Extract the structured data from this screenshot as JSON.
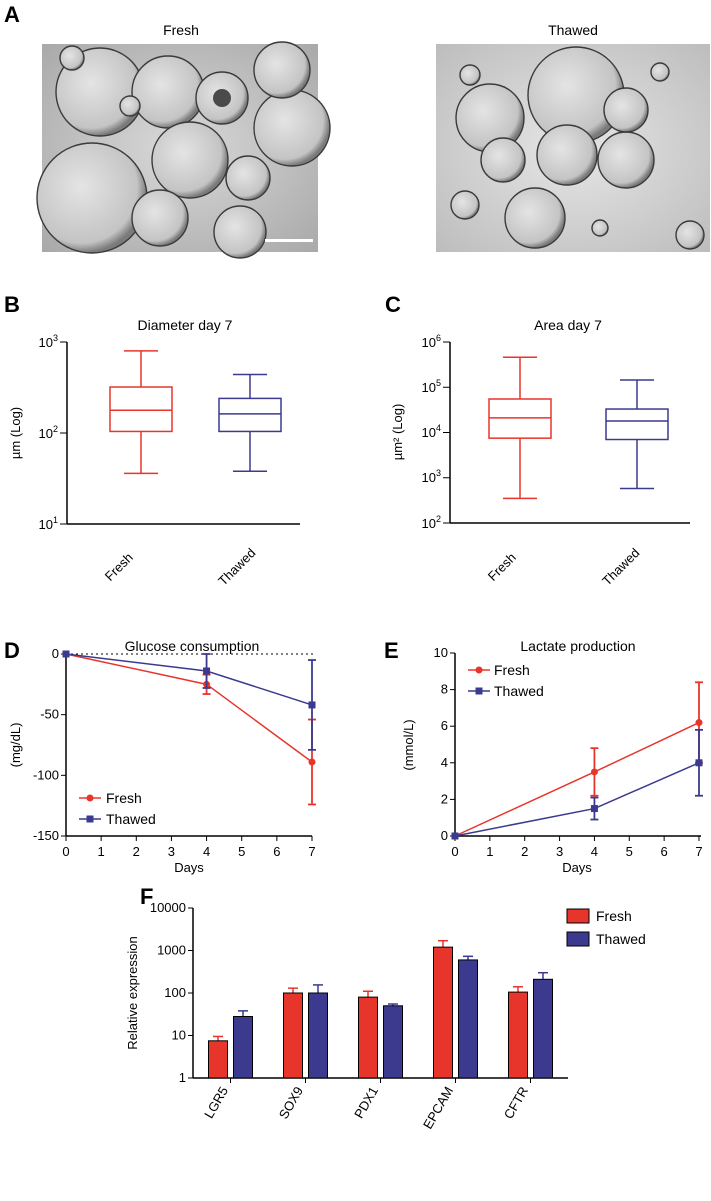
{
  "colors": {
    "fresh": "#e8352b",
    "thawed": "#3b3a8e",
    "axis": "#000000"
  },
  "panel_labels": {
    "a": "A",
    "b": "B",
    "c": "C",
    "d": "D",
    "e": "E",
    "f": "F"
  },
  "photos": {
    "fresh_title": "Fresh",
    "thawed_title": "Thawed"
  },
  "chart_data": [
    {
      "id": "B",
      "type": "box",
      "title": "Diameter day 7",
      "ylabel": "µm (Log)",
      "yscale": "log",
      "ylim": [
        10,
        1000
      ],
      "ytick_exps": [
        "1",
        "2",
        "3"
      ],
      "categories": [
        "Fresh",
        "Thawed"
      ],
      "boxes": [
        {
          "name": "Fresh",
          "min": 36,
          "q1": 104,
          "median": 178,
          "q3": 320,
          "max": 800
        },
        {
          "name": "Thawed",
          "min": 38,
          "q1": 104,
          "median": 162,
          "q3": 240,
          "max": 440
        }
      ]
    },
    {
      "id": "C",
      "type": "box",
      "title": "Area day 7",
      "ylabel": "µm² (Log)",
      "yscale": "log",
      "ylim": [
        100,
        1000000
      ],
      "ytick_exps": [
        "2",
        "3",
        "4",
        "5",
        "6"
      ],
      "categories": [
        "Fresh",
        "Thawed"
      ],
      "boxes": [
        {
          "name": "Fresh",
          "min": 350,
          "q1": 7500,
          "median": 21000,
          "q3": 55000,
          "max": 460000
        },
        {
          "name": "Thawed",
          "min": 580,
          "q1": 7000,
          "median": 18000,
          "q3": 33000,
          "max": 145000
        }
      ]
    },
    {
      "id": "D",
      "type": "line",
      "title": "Glucose consumption",
      "xlabel": "Days",
      "ylabel": "(mg/dL)",
      "xlim": [
        0,
        7
      ],
      "ylim": [
        -150,
        0
      ],
      "xticks": [
        "0",
        "1",
        "2",
        "3",
        "4",
        "5",
        "6",
        "7"
      ],
      "yticks": [
        "0",
        "-50",
        "-100",
        "-150"
      ],
      "series": [
        {
          "name": "Fresh",
          "x": [
            0,
            4,
            7
          ],
          "y": [
            0,
            -25,
            -89
          ],
          "err": [
            0,
            8,
            35
          ]
        },
        {
          "name": "Thawed",
          "x": [
            0,
            4,
            7
          ],
          "y": [
            0,
            -14,
            -42
          ],
          "err": [
            0,
            14,
            37
          ]
        }
      ]
    },
    {
      "id": "E",
      "type": "line",
      "title": "Lactate production",
      "xlabel": "Days",
      "ylabel": "(mmol/L)",
      "xlim": [
        0,
        7
      ],
      "ylim": [
        0,
        10
      ],
      "xticks": [
        "0",
        "1",
        "2",
        "3",
        "4",
        "5",
        "6",
        "7"
      ],
      "yticks": [
        "0",
        "2",
        "4",
        "6",
        "8",
        "10"
      ],
      "series": [
        {
          "name": "Fresh",
          "x": [
            0,
            4,
            7
          ],
          "y": [
            0,
            3.5,
            6.2
          ],
          "err": [
            0,
            1.3,
            2.2
          ]
        },
        {
          "name": "Thawed",
          "x": [
            0,
            4,
            7
          ],
          "y": [
            0,
            1.5,
            4.0
          ],
          "err": [
            0,
            0.6,
            1.8
          ]
        }
      ]
    },
    {
      "id": "F",
      "type": "bar",
      "ylabel": "Relative expression",
      "yscale": "log",
      "ylim": [
        1,
        10000
      ],
      "yticks": [
        "1",
        "10",
        "100",
        "1000",
        "10000"
      ],
      "categories": [
        "LGR5",
        "SOX9",
        "PDX1",
        "EPCAM",
        "CFTR"
      ],
      "series": [
        {
          "name": "Fresh",
          "values": [
            7.5,
            100,
            80,
            1200,
            105
          ],
          "err": [
            2,
            30,
            30,
            500,
            35
          ]
        },
        {
          "name": "Thawed",
          "values": [
            28,
            100,
            50,
            600,
            210
          ],
          "err": [
            10,
            55,
            5,
            130,
            90
          ]
        }
      ]
    }
  ]
}
